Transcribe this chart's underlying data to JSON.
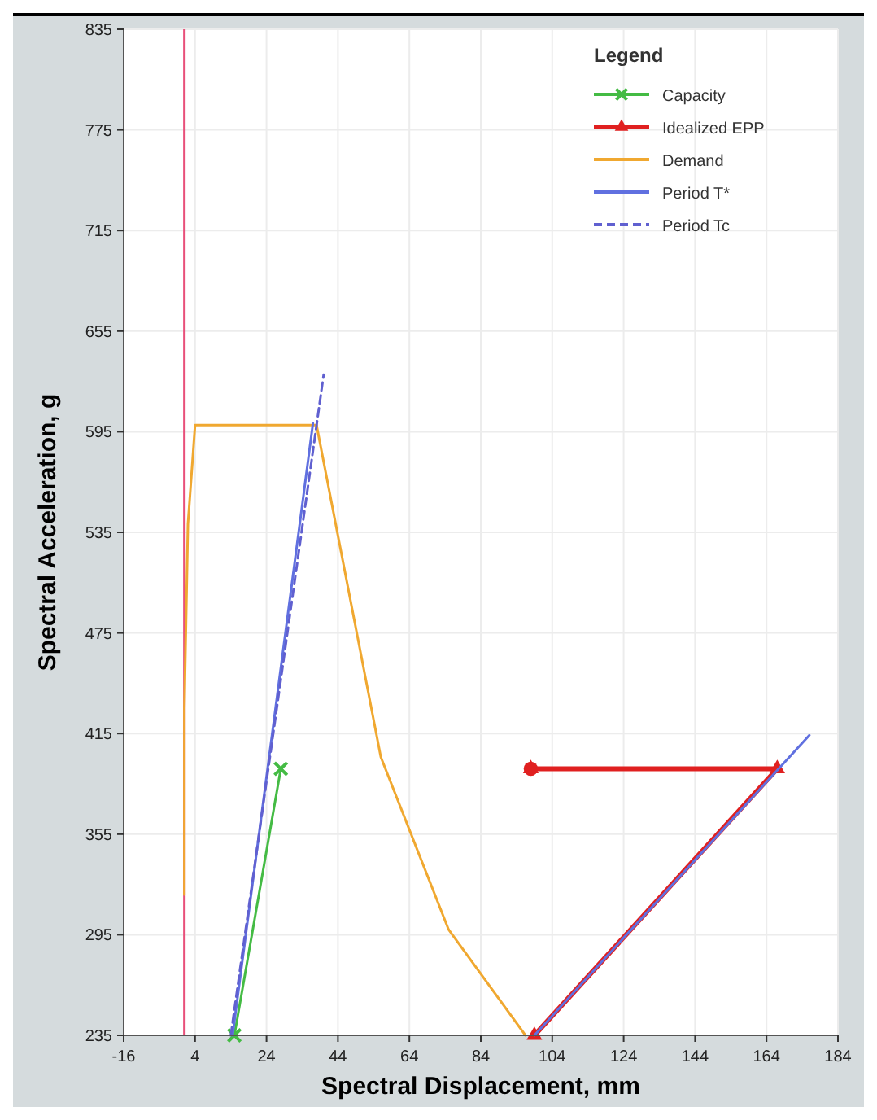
{
  "chart_data": {
    "type": "line",
    "xlabel": "Spectral Displacement, mm",
    "ylabel": "Spectral Acceleration, g",
    "legend_title": "Legend",
    "legend": "top right",
    "grid": true,
    "xlim": [
      -16,
      184
    ],
    "xticks": [
      -16,
      4,
      24,
      44,
      64,
      84,
      104,
      124,
      144,
      164,
      184
    ],
    "ylim": [
      235,
      835
    ],
    "yticks": [
      235,
      295,
      355,
      415,
      475,
      535,
      595,
      655,
      715,
      775,
      835
    ],
    "ref_lines": [
      {
        "axis": "x",
        "value": 1,
        "color": "#e8507a"
      }
    ],
    "series": [
      {
        "type": "scatter",
        "color": "#e02020",
        "marker": "circle",
        "x": [
          98
        ],
        "values": [
          394
        ]
      },
      {
        "name": "Capacity",
        "color": "#44bb44",
        "marker": "cross",
        "x": [
          15,
          28
        ],
        "values": [
          235,
          394
        ]
      },
      {
        "name": "Idealized EPP",
        "color": "#e02020",
        "marker": "triangle",
        "x": [
          98,
          167,
          99
        ],
        "values": [
          394,
          394,
          235
        ]
      },
      {
        "name": "Demand",
        "color": "#f0a830",
        "marker": "none",
        "x": [
          1,
          1,
          2,
          4,
          38,
          56,
          75,
          96.5
        ],
        "values": [
          319,
          430,
          540,
          599,
          599,
          401,
          298,
          235
        ]
      },
      {
        "name": "Period T*",
        "color": "#6070e0",
        "marker": "none",
        "x": [
          14.5,
          37,
          60,
          99,
          176
        ],
        "values": [
          235,
          600,
          null,
          235,
          414
        ]
      },
      {
        "name": "Period Tc",
        "color": "#6060d0",
        "marker": "none",
        "line_style": "dashed",
        "x": [
          14,
          40
        ],
        "values": [
          235,
          629
        ]
      }
    ]
  }
}
